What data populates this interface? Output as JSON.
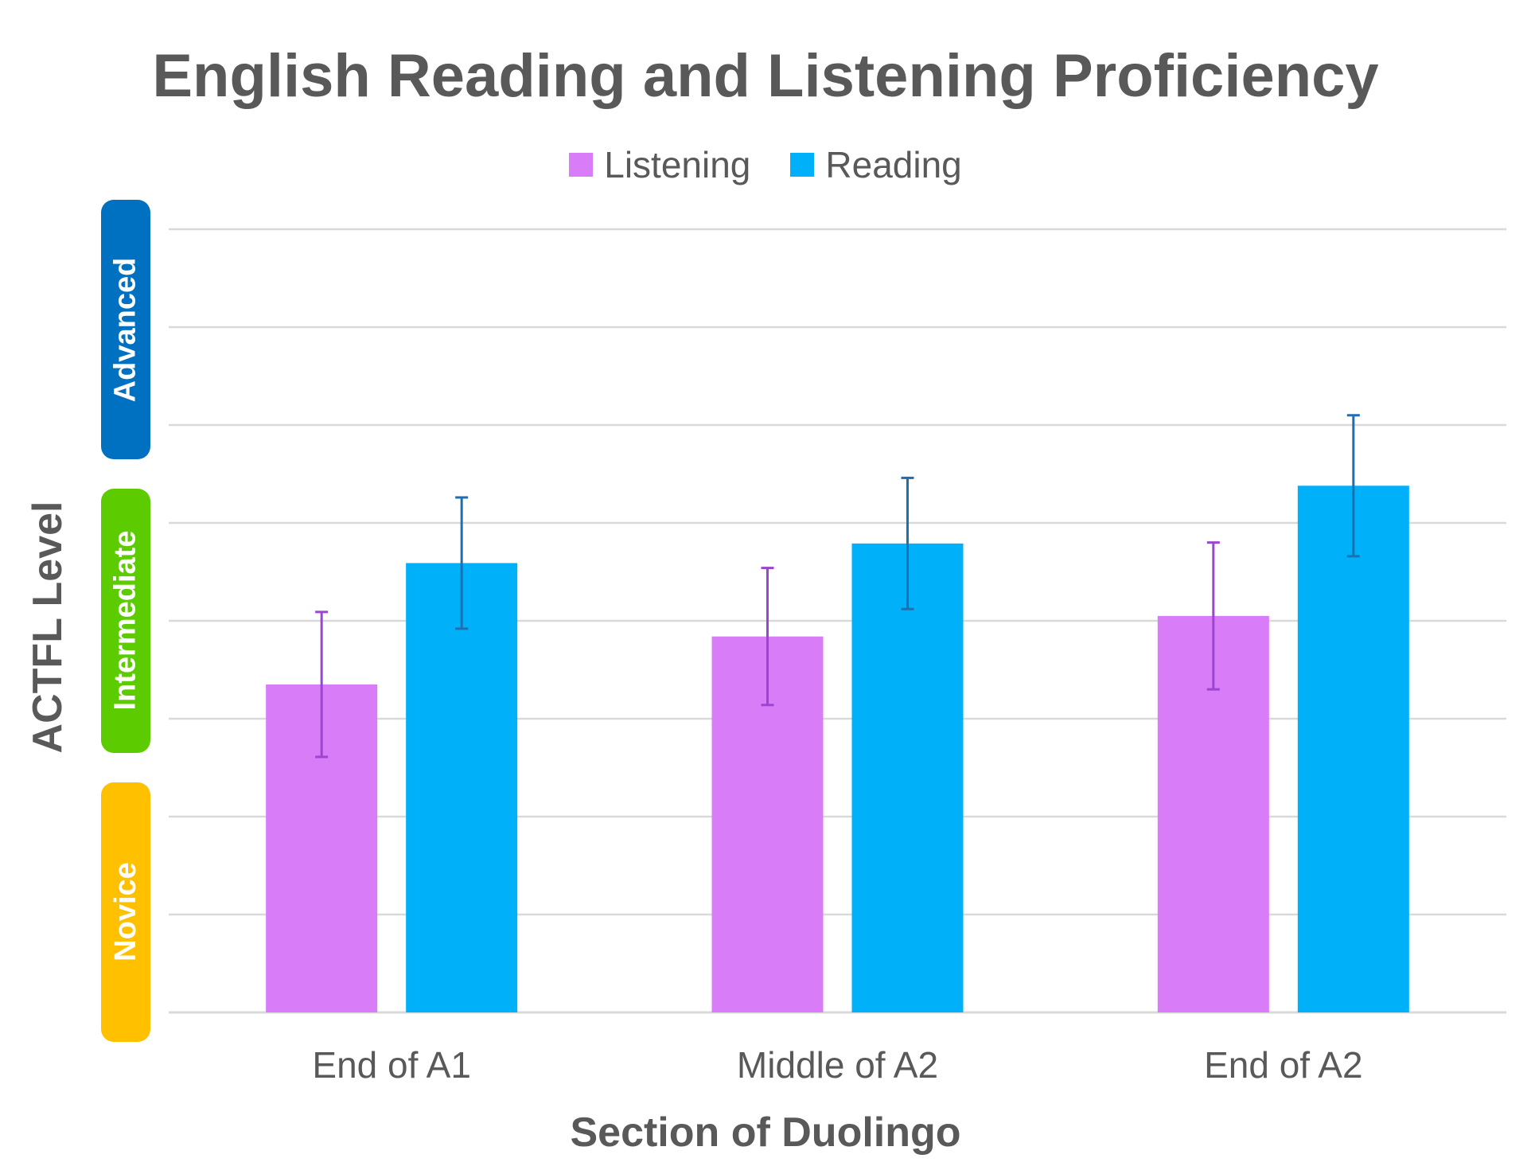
{
  "chart_data": {
    "type": "bar",
    "title": "English Reading and Listening Proficiency",
    "xlabel": "Section of Duolingo",
    "ylabel": "ACTFL Level",
    "categories": [
      "End of A1",
      "Middle of A2",
      "End of A2"
    ],
    "series": [
      {
        "name": "Listening",
        "color": "#d97cf8",
        "error_color": "#9b45d4",
        "values": [
          3.35,
          3.84,
          4.05
        ],
        "error": [
          0.74,
          0.7,
          0.75
        ]
      },
      {
        "name": "Reading",
        "color": "#00b0f8",
        "error_color": "#1f6fb0",
        "values": [
          4.59,
          4.79,
          5.38
        ],
        "error": [
          0.67,
          0.67,
          0.72
        ]
      }
    ],
    "ylim": [
      0,
      8
    ],
    "grid": true,
    "legend_position": "top",
    "level_bands": [
      {
        "label": "Advanced",
        "color": "#0070c0",
        "range": [
          5.65,
          8.3
        ]
      },
      {
        "label": "Intermediate",
        "color": "#5ccc00",
        "range": [
          2.65,
          5.35
        ]
      },
      {
        "label": "Novice",
        "color": "#ffc000",
        "range": [
          -0.3,
          2.35
        ]
      }
    ]
  }
}
